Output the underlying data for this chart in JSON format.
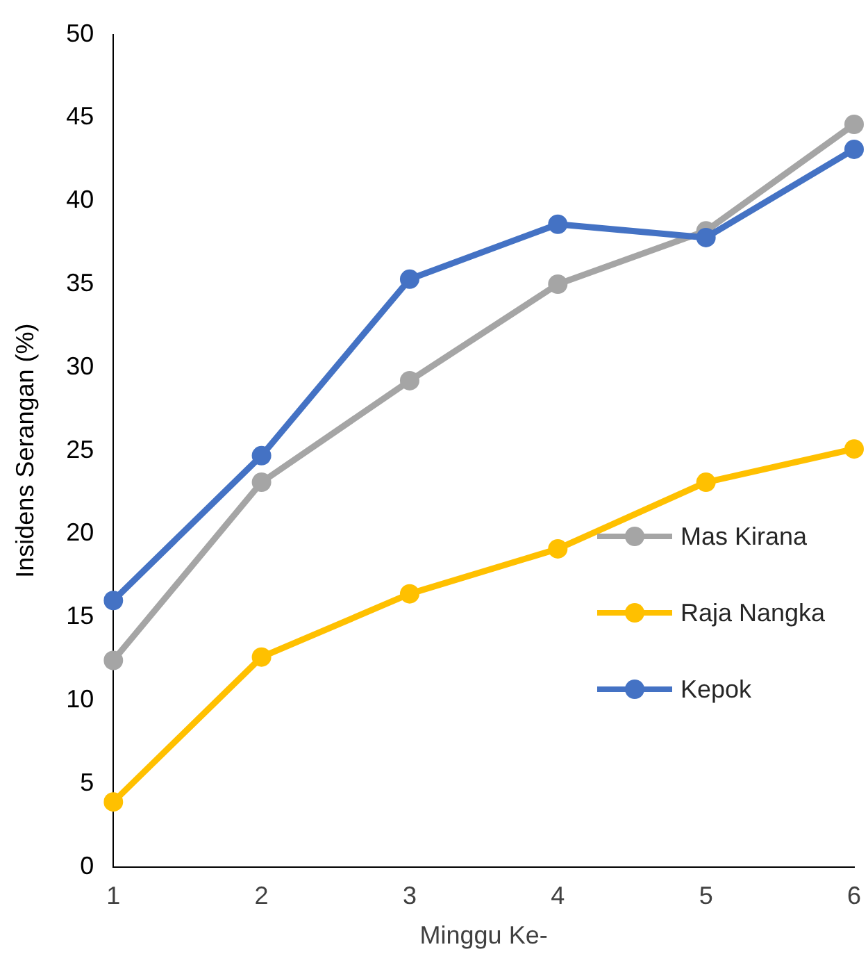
{
  "chart_data": {
    "type": "line",
    "xlabel": "Minggu Ke-",
    "ylabel": "Insidens Serangan (%)",
    "categories": [
      "1",
      "2",
      "3",
      "4",
      "5",
      "6"
    ],
    "series": [
      {
        "name": "Mas Kirana",
        "color": "#a5a5a5",
        "values": [
          12.4,
          23.1,
          29.2,
          35.0,
          38.2,
          44.6
        ]
      },
      {
        "name": "Raja Nangka",
        "color": "#ffc000",
        "values": [
          3.9,
          12.6,
          16.4,
          19.1,
          23.1,
          25.1
        ]
      },
      {
        "name": "Kepok",
        "color": "#4472c4",
        "values": [
          16.0,
          24.7,
          35.3,
          38.6,
          37.8,
          43.1
        ]
      }
    ],
    "ylim": [
      0,
      50
    ],
    "yticks": [
      0,
      5,
      10,
      15,
      20,
      25,
      30,
      35,
      40,
      45,
      50
    ],
    "grid": false,
    "legend": "right",
    "marker": "circle",
    "line_style": "solid"
  }
}
